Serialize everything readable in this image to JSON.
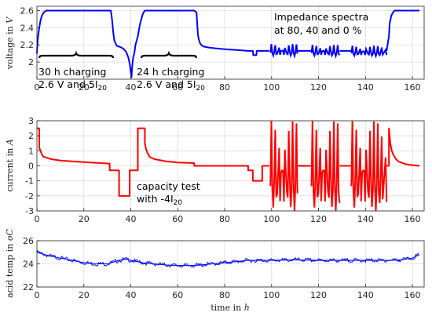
{
  "chart_data": [
    {
      "type": "line",
      "id": "voltage",
      "ylabel": "voltage in V",
      "xlim": [
        0,
        165
      ],
      "ylim": [
        1.8,
        2.65
      ],
      "xticks": [
        0,
        20,
        40,
        60,
        80,
        100,
        120,
        140,
        160
      ],
      "yticks": [
        2,
        2.2,
        2.4,
        2.6
      ],
      "xtick_labels": [
        "0",
        "20",
        "40",
        "60",
        "80",
        "100",
        "120",
        "140",
        "160"
      ],
      "ytick_labels": [
        "2",
        "2.2",
        "2.4",
        "2.6"
      ],
      "grid": true,
      "color": "#0000ff",
      "series": [
        {
          "x": [
            0,
            0.2,
            0.5,
            1,
            1.5,
            2,
            2.5,
            3,
            4,
            6,
            10,
            20,
            31.5,
            32,
            32.5,
            33,
            34,
            36,
            37,
            38,
            39,
            39.6,
            40,
            40.3,
            40.6,
            41,
            41.5,
            42,
            43,
            43.5,
            44,
            44.3,
            44.6,
            45,
            45.5,
            46,
            47,
            50,
            60,
            67,
            68,
            68.3,
            68.6,
            69,
            69.5,
            70,
            71,
            73,
            76,
            80,
            85,
            90,
            92,
            92.2,
            93.5,
            93.7,
            96,
            99
          ],
          "y": [
            2.1,
            2.2,
            2.3,
            2.4,
            2.48,
            2.53,
            2.56,
            2.58,
            2.6,
            2.6,
            2.6,
            2.6,
            2.6,
            2.5,
            2.35,
            2.25,
            2.19,
            2.17,
            2.15,
            2.12,
            2.05,
            1.97,
            1.88,
            1.82,
            1.95,
            2.05,
            2.1,
            2.2,
            2.3,
            2.38,
            2.45,
            2.48,
            2.51,
            2.55,
            2.58,
            2.6,
            2.6,
            2.6,
            2.6,
            2.6,
            2.58,
            2.45,
            2.32,
            2.26,
            2.22,
            2.2,
            2.18,
            2.17,
            2.16,
            2.15,
            2.14,
            2.13,
            2.13,
            2.08,
            2.08,
            2.13,
            2.13,
            2.13
          ]
        },
        {
          "x": [
            149,
            150,
            150.3,
            151,
            152,
            152.5,
            163
          ],
          "y": [
            2.13,
            2.3,
            2.45,
            2.54,
            2.59,
            2.6,
            2.6
          ]
        }
      ],
      "impedance_bursts": [
        {
          "x_start": 99.5,
          "x_end": 111,
          "y_min": 2.07,
          "y_max": 2.21
        },
        {
          "x_start": 117,
          "x_end": 129,
          "y_min": 2.07,
          "y_max": 2.2
        },
        {
          "x_start": 134,
          "x_end": 149,
          "y_min": 2.07,
          "y_max": 2.19
        }
      ]
    },
    {
      "type": "line",
      "id": "current",
      "ylabel": "current in A",
      "xlim": [
        0,
        165
      ],
      "ylim": [
        -3,
        3
      ],
      "xticks": [
        0,
        20,
        40,
        60,
        80,
        100,
        120,
        140,
        160
      ],
      "yticks": [
        -3,
        -2,
        -1,
        0,
        1,
        2,
        3
      ],
      "xtick_labels": [
        "0",
        "20",
        "40",
        "60",
        "80",
        "100",
        "120",
        "140",
        "160"
      ],
      "ytick_labels": [
        "-3",
        "-2",
        "-1",
        "0",
        "1",
        "2",
        "3"
      ],
      "grid": true,
      "color": "#ff0000",
      "series": [
        {
          "x": [
            0,
            1,
            1.01,
            2,
            2.5,
            3,
            4,
            5,
            6,
            8,
            10,
            15,
            20,
            25,
            31,
            31.01,
            35,
            35.01,
            39.5,
            39.51,
            43,
            43.01,
            46,
            46.01,
            46.5,
            47,
            48,
            50,
            55,
            60,
            67,
            67.01,
            90,
            90.01,
            92,
            92.01,
            96,
            96.01,
            99
          ],
          "y": [
            2.5,
            2.5,
            1.2,
            0.8,
            0.65,
            0.6,
            0.55,
            0.5,
            0.45,
            0.4,
            0.35,
            0.3,
            0.25,
            0.2,
            0.15,
            -0.3,
            -0.3,
            -2,
            -2,
            -0.3,
            -0.3,
            2.5,
            2.5,
            1.5,
            1.1,
            0.9,
            0.6,
            0.45,
            0.3,
            0.22,
            0.18,
            0,
            0,
            -0.3,
            -0.3,
            -1,
            -1,
            0,
            0
          ]
        },
        {
          "x": [
            150,
            150.01,
            150.6,
            151.2,
            152,
            153,
            154,
            155.5,
            157,
            159,
            161,
            163
          ],
          "y": [
            0,
            2.5,
            1.5,
            1,
            0.7,
            0.45,
            0.3,
            0.2,
            0.12,
            0.06,
            0.03,
            0
          ]
        }
      ],
      "impedance_bursts": [
        {
          "x_start": 99.5,
          "x_end": 111,
          "y_min": -3,
          "y_max": 3
        },
        {
          "x_start": 117,
          "x_end": 129,
          "y_min": -3,
          "y_max": 3
        },
        {
          "x_start": 134,
          "x_end": 149,
          "y_min": -3,
          "y_max": 3
        }
      ]
    },
    {
      "type": "line",
      "id": "acid_temp",
      "ylabel": "acid temp in oC",
      "xlabel": "time in h",
      "xlim": [
        0,
        165
      ],
      "ylim": [
        22,
        26
      ],
      "xticks": [
        0,
        20,
        40,
        60,
        80,
        100,
        120,
        140,
        160
      ],
      "yticks": [
        22,
        24,
        26
      ],
      "xtick_labels": [
        "0",
        "20",
        "40",
        "60",
        "80",
        "100",
        "120",
        "140",
        "160"
      ],
      "ytick_labels": [
        "22",
        "24",
        "26"
      ],
      "grid": true,
      "color": "#0000ff",
      "series": [
        {
          "x": [
            0,
            5,
            10,
            15,
            20,
            25,
            30,
            35,
            38,
            40,
            45,
            50,
            55,
            60,
            65,
            70,
            75,
            80,
            85,
            90,
            95,
            100,
            110,
            120,
            130,
            140,
            150,
            155,
            160,
            163
          ],
          "y": [
            25.0,
            24.7,
            24.5,
            24.3,
            24.1,
            24.0,
            24.0,
            24.3,
            24.4,
            24.3,
            24.1,
            24.0,
            23.9,
            23.85,
            23.85,
            23.9,
            24.0,
            24.1,
            24.2,
            24.3,
            24.3,
            24.3,
            24.35,
            24.3,
            24.3,
            24.3,
            24.3,
            24.35,
            24.5,
            24.8
          ]
        }
      ]
    }
  ],
  "annotations": {
    "voltage": {
      "impedance_line1": "Impedance spectra",
      "impedance_line2": "at 80, 40 and 0 %",
      "charge30_line1": "30 h charging",
      "charge30_line2": "2.6 V and 5I",
      "charge30_sub": "20",
      "charge24_line1": "24 h charging",
      "charge24_line2": "2.6 V and 5I",
      "charge24_sub": "20"
    },
    "current": {
      "cap_line1": "capacity test",
      "cap_line2": "with -4I",
      "cap_sub": "20"
    }
  },
  "axis_labels": {
    "voltage_y": "voltage in ",
    "voltage_y_unit": "V",
    "current_y": "current in ",
    "current_y_unit": "A",
    "temp_y": "acid temp in ",
    "temp_y_unit": "oC",
    "x": "time in ",
    "x_unit": "h"
  }
}
